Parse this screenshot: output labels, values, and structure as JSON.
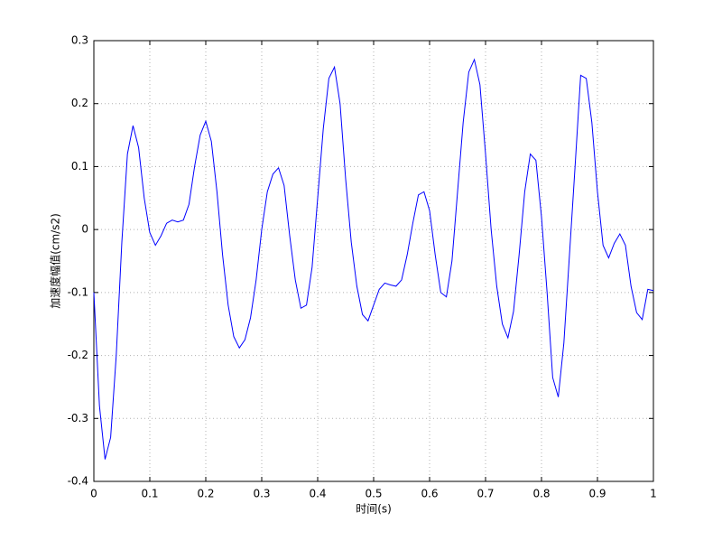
{
  "chart_data": {
    "type": "line",
    "x_label": "时间(s)",
    "y_label": "加速度幅值(cm/s2)",
    "x": [
      0,
      0.01,
      0.02,
      0.03,
      0.04,
      0.05,
      0.06,
      0.07,
      0.08,
      0.09,
      0.1,
      0.11,
      0.12,
      0.13,
      0.14,
      0.15,
      0.16,
      0.17,
      0.18,
      0.19,
      0.2,
      0.21,
      0.22,
      0.23,
      0.24,
      0.25,
      0.26,
      0.27,
      0.28,
      0.29,
      0.3,
      0.31,
      0.32,
      0.33,
      0.34,
      0.35,
      0.36,
      0.37,
      0.38,
      0.39,
      0.4,
      0.41,
      0.42,
      0.43,
      0.44,
      0.45,
      0.46,
      0.47,
      0.48,
      0.49,
      0.5,
      0.51,
      0.52,
      0.53,
      0.54,
      0.55,
      0.56,
      0.57,
      0.58,
      0.59,
      0.6,
      0.61,
      0.62,
      0.63,
      0.64,
      0.65,
      0.66,
      0.67,
      0.68,
      0.69,
      0.7,
      0.71,
      0.72,
      0.73,
      0.74,
      0.75,
      0.76,
      0.77,
      0.78,
      0.79,
      0.8,
      0.81,
      0.82,
      0.83,
      0.84,
      0.85,
      0.86,
      0.87,
      0.88,
      0.89,
      0.9,
      0.91,
      0.92,
      0.93,
      0.94,
      0.95,
      0.96,
      0.97,
      0.98,
      0.99,
      1
    ],
    "series": [
      {
        "color": "#0000ff",
        "values": [
          -0.1,
          -0.28,
          -0.365,
          -0.33,
          -0.2,
          -0.02,
          0.12,
          0.165,
          0.13,
          0.05,
          -0.005,
          -0.025,
          -0.01,
          0.01,
          0.015,
          0.012,
          0.015,
          0.04,
          0.1,
          0.15,
          0.172,
          0.14,
          0.06,
          -0.04,
          -0.12,
          -0.17,
          -0.188,
          -0.175,
          -0.14,
          -0.08,
          0.0,
          0.06,
          0.088,
          0.098,
          0.07,
          -0.01,
          -0.08,
          -0.125,
          -0.12,
          -0.06,
          0.05,
          0.16,
          0.24,
          0.258,
          0.2,
          0.08,
          -0.02,
          -0.09,
          -0.135,
          -0.145,
          -0.12,
          -0.095,
          -0.085,
          -0.088,
          -0.09,
          -0.08,
          -0.04,
          0.01,
          0.055,
          0.06,
          0.03,
          -0.04,
          -0.1,
          -0.107,
          -0.05,
          0.06,
          0.17,
          0.25,
          0.27,
          0.23,
          0.12,
          0.0,
          -0.09,
          -0.15,
          -0.172,
          -0.13,
          -0.04,
          0.06,
          0.12,
          0.11,
          0.02,
          -0.1,
          -0.235,
          -0.266,
          -0.18,
          -0.04,
          0.1,
          0.245,
          0.24,
          0.17,
          0.06,
          -0.025,
          -0.045,
          -0.022,
          -0.007,
          -0.025,
          -0.09,
          -0.132,
          -0.143,
          -0.095,
          -0.097
        ]
      }
    ],
    "xlim": [
      0,
      1
    ],
    "ylim": [
      -0.4,
      0.3
    ],
    "xticks": [
      0,
      0.1,
      0.2,
      0.3,
      0.4,
      0.5,
      0.6,
      0.7,
      0.8,
      0.9,
      1
    ],
    "yticks": [
      -0.4,
      -0.3,
      -0.2,
      -0.1,
      0,
      0.1,
      0.2,
      0.3
    ],
    "grid": true
  }
}
